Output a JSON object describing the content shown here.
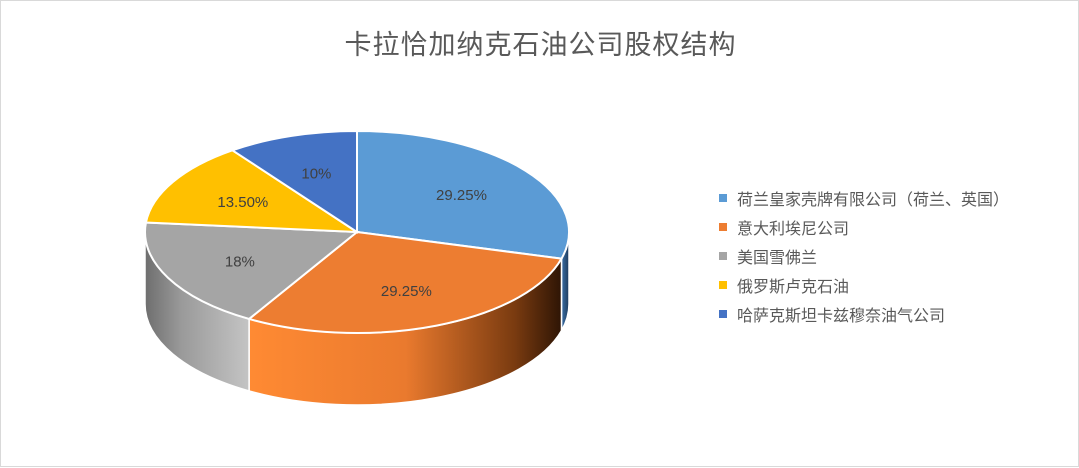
{
  "chart_data": {
    "type": "pie",
    "title": "卡拉恰加纳克石油公司股权结构",
    "categories": [
      "荷兰皇家壳牌有限公司（荷兰、英国）",
      "意大利埃尼公司",
      "美国雪佛兰",
      "俄罗斯卢克石油",
      "哈萨克斯坦卡兹穆奈油气公司"
    ],
    "values": [
      29.25,
      29.25,
      18,
      13.5,
      10
    ],
    "data_labels": [
      "29.25%",
      "29.25%",
      "18%",
      "13.50%",
      "10%"
    ],
    "colors": [
      "#5b9bd5",
      "#ed7d31",
      "#a5a5a5",
      "#ffc000",
      "#4472c4"
    ],
    "legend_position": "right",
    "style": "3D"
  }
}
